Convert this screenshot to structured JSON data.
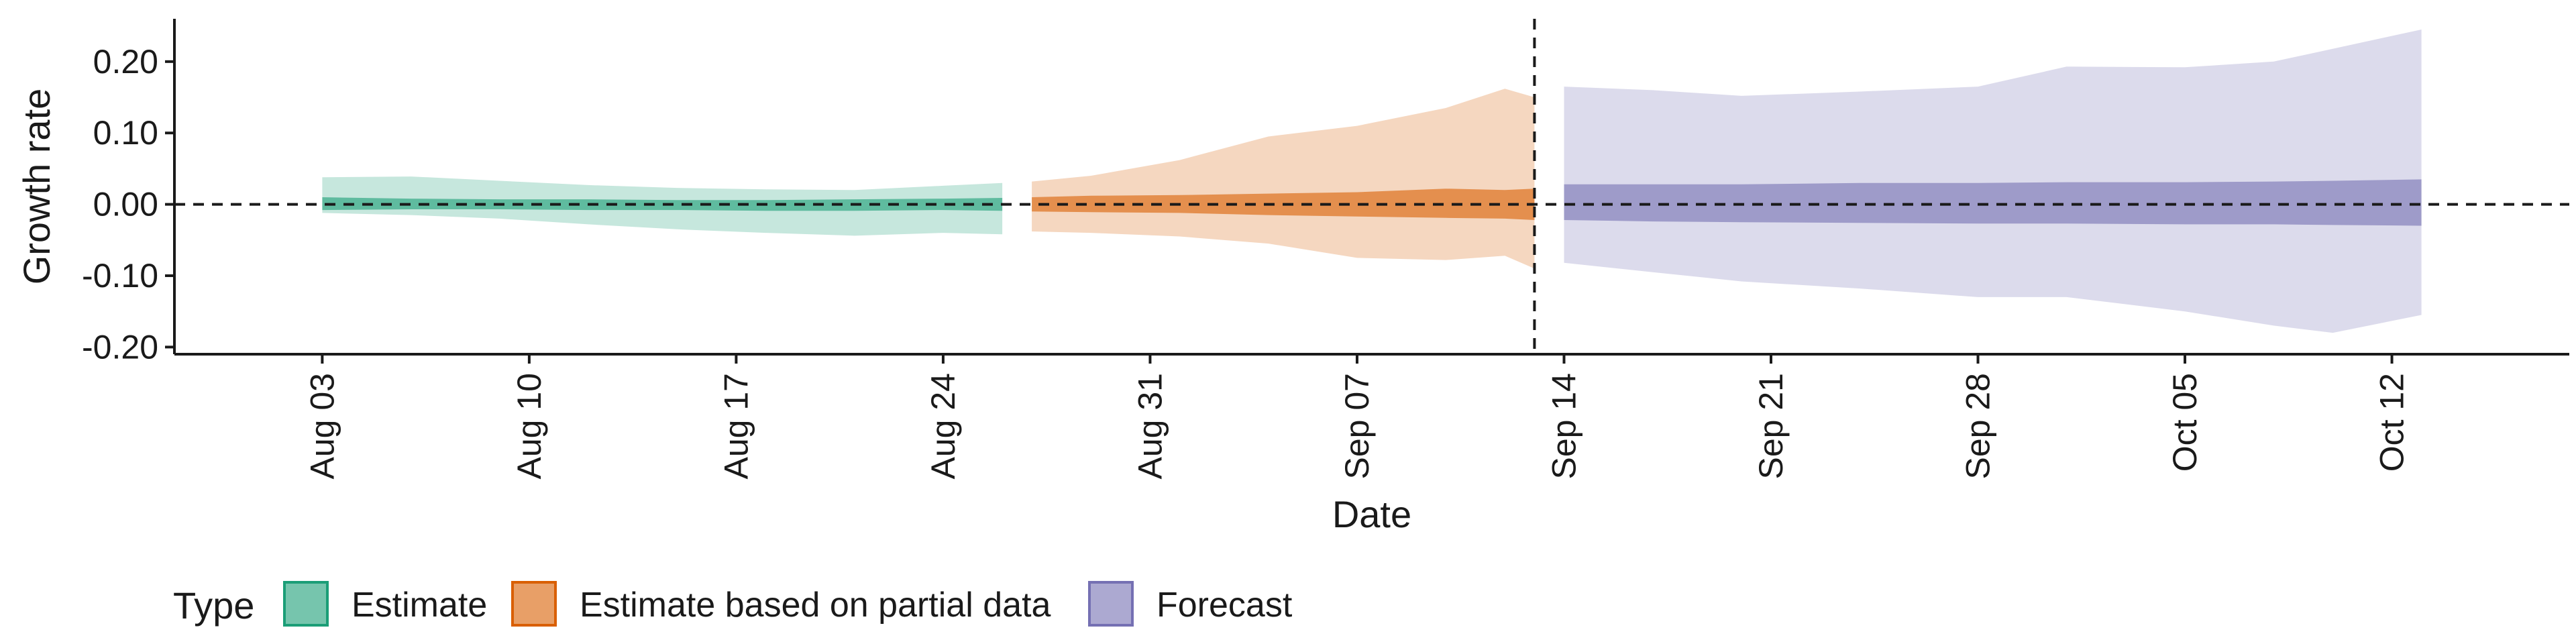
{
  "chart_data": {
    "type": "area",
    "xlabel": "Date",
    "ylabel": "Growth rate",
    "ylim": [
      -0.21,
      0.26
    ],
    "y_ticks": [
      -0.2,
      -0.1,
      0.0,
      0.1,
      0.2
    ],
    "y_tick_labels": [
      "-0.20",
      "-0.10",
      "0.00",
      "0.10",
      "0.20"
    ],
    "x_range": [
      "2020-07-29",
      "2020-10-18"
    ],
    "x_ticks": [
      "2020-08-03",
      "2020-08-10",
      "2020-08-17",
      "2020-08-24",
      "2020-08-31",
      "2020-09-07",
      "2020-09-14",
      "2020-09-21",
      "2020-09-28",
      "2020-10-05",
      "2020-10-12"
    ],
    "x_tick_labels": [
      "Aug 03",
      "Aug 10",
      "Aug 17",
      "Aug 24",
      "Aug 31",
      "Sep 07",
      "Sep 14",
      "Sep 21",
      "Sep 28",
      "Oct 05",
      "Oct 12"
    ],
    "reference_lines": {
      "horizontal_y": 0.0,
      "vertical_date": "2020-09-13"
    },
    "legend": {
      "title": "Type",
      "position": "bottom-left"
    },
    "series": [
      {
        "name": "Estimate",
        "color": "#1b9e77",
        "x": [
          "2020-08-03",
          "2020-08-06",
          "2020-08-09",
          "2020-08-12",
          "2020-08-15",
          "2020-08-18",
          "2020-08-21",
          "2020-08-24",
          "2020-08-26"
        ],
        "outer_upper": [
          0.038,
          0.039,
          0.033,
          0.027,
          0.023,
          0.021,
          0.02,
          0.026,
          0.03
        ],
        "outer_lower": [
          -0.012,
          -0.015,
          -0.02,
          -0.028,
          -0.035,
          -0.04,
          -0.044,
          -0.04,
          -0.042
        ],
        "inner_upper": [
          0.01,
          0.008,
          0.007,
          0.007,
          0.006,
          0.006,
          0.007,
          0.008,
          0.009
        ],
        "inner_lower": [
          -0.008,
          -0.007,
          -0.007,
          -0.008,
          -0.008,
          -0.009,
          -0.009,
          -0.008,
          -0.009
        ]
      },
      {
        "name": "Estimate based on partial data",
        "color": "#d95f02",
        "x": [
          "2020-08-27",
          "2020-08-29",
          "2020-09-01",
          "2020-09-04",
          "2020-09-07",
          "2020-09-10",
          "2020-09-12",
          "2020-09-13"
        ],
        "outer_upper": [
          0.032,
          0.04,
          0.062,
          0.095,
          0.11,
          0.135,
          0.162,
          0.15
        ],
        "outer_lower": [
          -0.038,
          -0.04,
          -0.045,
          -0.055,
          -0.075,
          -0.078,
          -0.072,
          -0.09
        ],
        "inner_upper": [
          0.01,
          0.012,
          0.013,
          0.015,
          0.017,
          0.022,
          0.02,
          0.022
        ],
        "inner_lower": [
          -0.01,
          -0.011,
          -0.012,
          -0.015,
          -0.017,
          -0.019,
          -0.02,
          -0.022
        ]
      },
      {
        "name": "Forecast",
        "color": "#7570b3",
        "x": [
          "2020-09-14",
          "2020-09-17",
          "2020-09-20",
          "2020-09-24",
          "2020-09-28",
          "2020-10-01",
          "2020-10-05",
          "2020-10-08",
          "2020-10-10",
          "2020-10-13"
        ],
        "outer_upper": [
          0.165,
          0.16,
          0.152,
          0.158,
          0.165,
          0.193,
          0.192,
          0.2,
          0.218,
          0.245
        ],
        "outer_lower": [
          -0.082,
          -0.095,
          -0.108,
          -0.118,
          -0.13,
          -0.13,
          -0.15,
          -0.17,
          -0.18,
          -0.155
        ],
        "inner_upper": [
          0.028,
          0.028,
          0.028,
          0.03,
          0.03,
          0.031,
          0.031,
          0.032,
          0.033,
          0.035
        ],
        "inner_lower": [
          -0.022,
          -0.024,
          -0.025,
          -0.026,
          -0.027,
          -0.027,
          -0.028,
          -0.028,
          -0.029,
          -0.03
        ]
      }
    ]
  }
}
